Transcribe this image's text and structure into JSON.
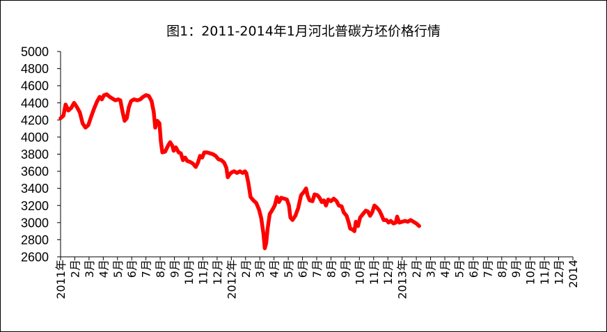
{
  "chart_data": {
    "type": "line",
    "title": "图1：2011-2014年1月河北普碳方坯价格行情",
    "xlabel": "",
    "ylabel": "",
    "ylim": [
      2600,
      5000
    ],
    "yticks": [
      2600,
      2800,
      3000,
      3200,
      3400,
      3600,
      3800,
      4000,
      4200,
      4400,
      4600,
      4800,
      5000
    ],
    "grid": false,
    "legend": "none",
    "line_color": "#ff0000",
    "x_tick_labels": [
      "2011年",
      "2月",
      "3月",
      "4月",
      "5月",
      "6月",
      "7月",
      "8月",
      "9月",
      "10月",
      "11月",
      "12月",
      "2012年",
      "2月",
      "3月",
      "4月",
      "5月",
      "6月",
      "7月",
      "8月",
      "9月",
      "10月",
      "11月",
      "12月",
      "2013年",
      "2月",
      "3月",
      "4月",
      "5月",
      "6月",
      "7月",
      "8月",
      "9月",
      "10月",
      "11月",
      "12月",
      "2014"
    ],
    "series": [
      {
        "values": [
          [
            0,
            4220
          ],
          [
            0.2,
            4250
          ],
          [
            0.35,
            4380
          ],
          [
            0.55,
            4310
          ],
          [
            0.75,
            4340
          ],
          [
            0.95,
            4400
          ],
          [
            1.15,
            4350
          ],
          [
            1.35,
            4290
          ],
          [
            1.55,
            4160
          ],
          [
            1.75,
            4110
          ],
          [
            1.95,
            4140
          ],
          [
            2.15,
            4240
          ],
          [
            2.35,
            4330
          ],
          [
            2.55,
            4410
          ],
          [
            2.75,
            4470
          ],
          [
            2.9,
            4440
          ],
          [
            3.05,
            4490
          ],
          [
            3.25,
            4500
          ],
          [
            3.45,
            4470
          ],
          [
            3.65,
            4450
          ],
          [
            3.85,
            4430
          ],
          [
            4.05,
            4440
          ],
          [
            4.2,
            4430
          ],
          [
            4.35,
            4300
          ],
          [
            4.5,
            4190
          ],
          [
            4.65,
            4220
          ],
          [
            4.8,
            4350
          ],
          [
            4.95,
            4420
          ],
          [
            5.15,
            4440
          ],
          [
            5.4,
            4430
          ],
          [
            5.6,
            4440
          ],
          [
            5.8,
            4470
          ],
          [
            6.0,
            4490
          ],
          [
            6.2,
            4480
          ],
          [
            6.4,
            4420
          ],
          [
            6.55,
            4290
          ],
          [
            6.65,
            4110
          ],
          [
            6.8,
            4190
          ],
          [
            6.95,
            4160
          ],
          [
            7.05,
            3950
          ],
          [
            7.15,
            3820
          ],
          [
            7.35,
            3830
          ],
          [
            7.55,
            3900
          ],
          [
            7.7,
            3940
          ],
          [
            7.85,
            3900
          ],
          [
            7.95,
            3840
          ],
          [
            8.1,
            3880
          ],
          [
            8.3,
            3820
          ],
          [
            8.45,
            3810
          ],
          [
            8.6,
            3730
          ],
          [
            8.75,
            3760
          ],
          [
            8.9,
            3720
          ],
          [
            9.1,
            3710
          ],
          [
            9.3,
            3690
          ],
          [
            9.5,
            3650
          ],
          [
            9.65,
            3700
          ],
          [
            9.8,
            3780
          ],
          [
            9.95,
            3760
          ],
          [
            10.1,
            3820
          ],
          [
            10.3,
            3820
          ],
          [
            10.5,
            3810
          ],
          [
            10.7,
            3800
          ],
          [
            10.9,
            3780
          ],
          [
            11.1,
            3740
          ],
          [
            11.3,
            3730
          ],
          [
            11.5,
            3700
          ],
          [
            11.65,
            3640
          ],
          [
            11.75,
            3530
          ],
          [
            11.9,
            3570
          ],
          [
            12.05,
            3590
          ],
          [
            12.2,
            3600
          ],
          [
            12.4,
            3580
          ],
          [
            12.6,
            3600
          ],
          [
            12.8,
            3580
          ],
          [
            12.95,
            3600
          ],
          [
            13.05,
            3580
          ],
          [
            13.2,
            3460
          ],
          [
            13.35,
            3300
          ],
          [
            13.55,
            3260
          ],
          [
            13.75,
            3230
          ],
          [
            13.95,
            3150
          ],
          [
            14.1,
            3050
          ],
          [
            14.25,
            2880
          ],
          [
            14.35,
            2700
          ],
          [
            14.45,
            2760
          ],
          [
            14.55,
            2930
          ],
          [
            14.7,
            3100
          ],
          [
            14.85,
            3140
          ],
          [
            15.05,
            3200
          ],
          [
            15.2,
            3300
          ],
          [
            15.35,
            3240
          ],
          [
            15.5,
            3290
          ],
          [
            15.7,
            3280
          ],
          [
            15.9,
            3270
          ],
          [
            16.05,
            3200
          ],
          [
            16.15,
            3060
          ],
          [
            16.3,
            3030
          ],
          [
            16.5,
            3080
          ],
          [
            16.7,
            3170
          ],
          [
            16.9,
            3320
          ],
          [
            17.1,
            3360
          ],
          [
            17.25,
            3400
          ],
          [
            17.35,
            3320
          ],
          [
            17.5,
            3260
          ],
          [
            17.7,
            3250
          ],
          [
            17.85,
            3330
          ],
          [
            18.05,
            3320
          ],
          [
            18.2,
            3290
          ],
          [
            18.35,
            3240
          ],
          [
            18.5,
            3260
          ],
          [
            18.65,
            3200
          ],
          [
            18.8,
            3270
          ],
          [
            19.0,
            3250
          ],
          [
            19.2,
            3280
          ],
          [
            19.4,
            3250
          ],
          [
            19.55,
            3200
          ],
          [
            19.75,
            3190
          ],
          [
            19.9,
            3120
          ],
          [
            20.1,
            3080
          ],
          [
            20.25,
            3000
          ],
          [
            20.35,
            2930
          ],
          [
            20.5,
            2920
          ],
          [
            20.65,
            2900
          ],
          [
            20.75,
            3010
          ],
          [
            20.9,
            2960
          ],
          [
            21.05,
            3060
          ],
          [
            21.25,
            3100
          ],
          [
            21.45,
            3140
          ],
          [
            21.6,
            3130
          ],
          [
            21.75,
            3080
          ],
          [
            21.9,
            3120
          ],
          [
            22.05,
            3200
          ],
          [
            22.2,
            3180
          ],
          [
            22.4,
            3140
          ],
          [
            22.55,
            3090
          ],
          [
            22.7,
            3030
          ],
          [
            22.9,
            3030
          ],
          [
            23.05,
            3000
          ],
          [
            23.2,
            3020
          ],
          [
            23.4,
            2990
          ],
          [
            23.55,
            3000
          ],
          [
            23.65,
            3070
          ],
          [
            23.8,
            3000
          ],
          [
            24.0,
            3010
          ],
          [
            24.2,
            3020
          ],
          [
            24.4,
            3010
          ],
          [
            24.6,
            3030
          ],
          [
            24.8,
            3010
          ],
          [
            25.0,
            2990
          ],
          [
            25.2,
            2960
          ]
        ]
      }
    ]
  }
}
